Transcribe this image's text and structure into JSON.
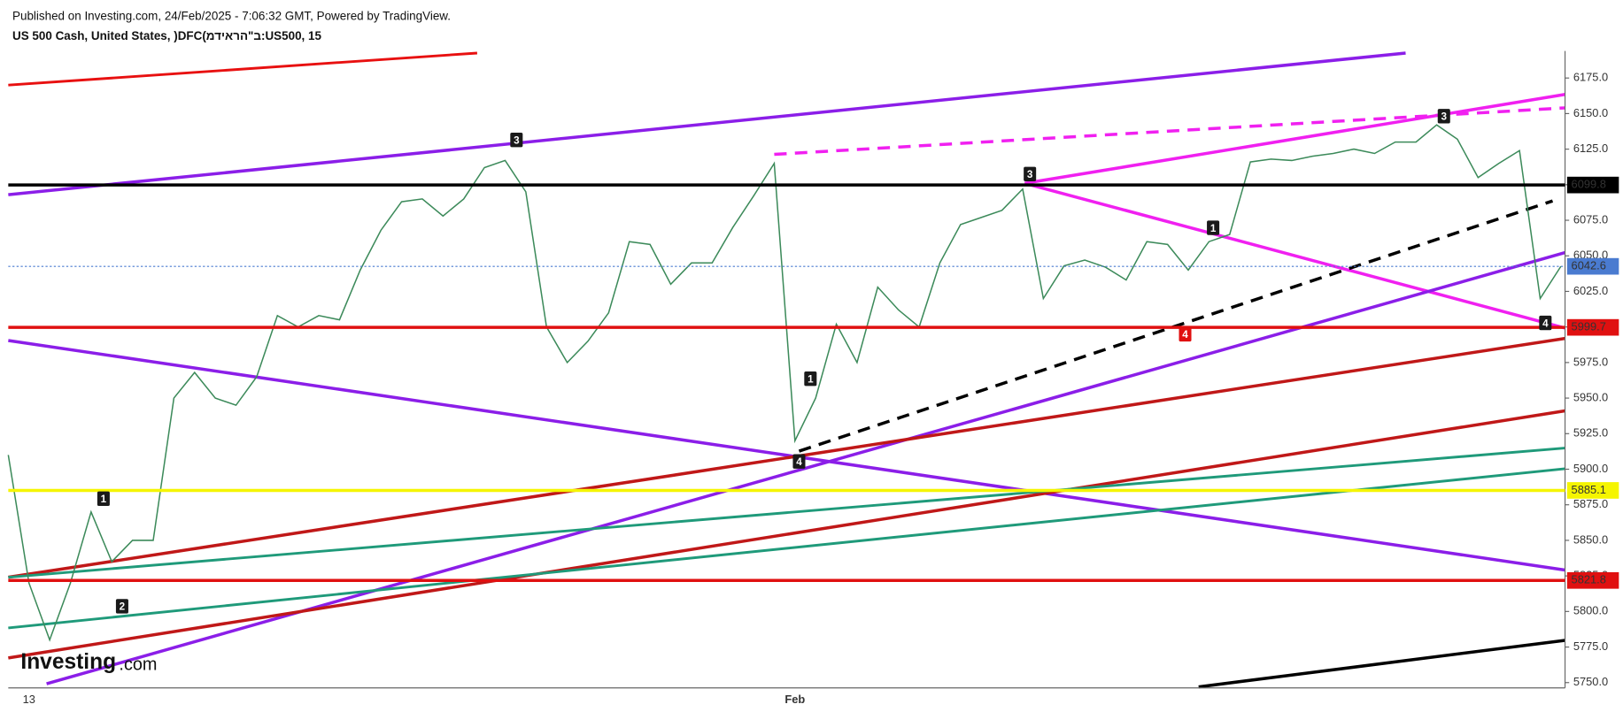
{
  "header": {
    "published": "Published on Investing.com, 24/Feb/2025 - 7:06:32 GMT, Powered by TradingView.",
    "symbol": "US 500 Cash, United States, )DFC(ב\"הראידמ:US500, 15"
  },
  "logo": {
    "name": "Investing",
    "suffix": ".com"
  },
  "chart_data": {
    "type": "line",
    "color": "#3c8a5a",
    "categories": [
      null,
      "13",
      null,
      null,
      null,
      null,
      null,
      null,
      null,
      null,
      null,
      null,
      null,
      null,
      null,
      null,
      null,
      null,
      null,
      null,
      null,
      null,
      null,
      null,
      null,
      null,
      null,
      null,
      null,
      null,
      null,
      null,
      null,
      null,
      null,
      null,
      null,
      null,
      "Feb",
      null,
      null,
      null,
      null,
      null,
      null,
      null,
      null,
      null,
      null,
      null,
      null,
      null,
      null,
      null,
      null,
      null,
      null,
      null,
      null,
      null,
      null,
      null,
      null,
      null,
      null,
      null,
      null,
      null,
      null,
      null,
      null,
      null,
      null,
      null,
      null,
      null
    ],
    "values": [
      5910,
      5820,
      5780,
      5820,
      5870,
      5835,
      5850,
      5850,
      5950,
      5968,
      5950,
      5945,
      5965,
      6008,
      6000,
      6008,
      6005,
      6040,
      6068,
      6088,
      6090,
      6078,
      6090,
      6112,
      6117,
      6095,
      6000,
      5975,
      5990,
      6010,
      6060,
      6058,
      6030,
      6045,
      6045,
      6070,
      6092,
      6115,
      5920,
      5950,
      6002,
      5975,
      6028,
      6012,
      6000,
      6045,
      6072,
      6077,
      6082,
      6097,
      6020,
      6043,
      6047,
      6042,
      6033,
      6060,
      6058,
      6040,
      6060,
      6065,
      6116,
      6118,
      6117,
      6120,
      6122,
      6125,
      6122,
      6130,
      6130,
      6142,
      6132,
      6105,
      6115,
      6124,
      6020,
      6042.6
    ],
    "ylim": [
      5747,
      6194
    ],
    "yticks": [
      {
        "value": 5750,
        "label": "5750.0"
      },
      {
        "value": 5775,
        "label": "5775.0"
      },
      {
        "value": 5800,
        "label": "5800.0"
      },
      {
        "value": 5825,
        "label": "5825.0"
      },
      {
        "value": 5850,
        "label": "5850.0"
      },
      {
        "value": 5875,
        "label": "5875.0"
      },
      {
        "value": 5900,
        "label": "5900.0"
      },
      {
        "value": 5925,
        "label": "5925.0"
      },
      {
        "value": 5950,
        "label": "5950.0"
      },
      {
        "value": 5975,
        "label": "5975.0"
      },
      {
        "value": 6000,
        "label": "6000.0"
      },
      {
        "value": 6025,
        "label": "6025.0"
      },
      {
        "value": 6050,
        "label": "6050.0"
      },
      {
        "value": 6075,
        "label": "6075.0"
      },
      {
        "value": 6100,
        "label": "6100.0"
      },
      {
        "value": 6125,
        "label": "6125.0"
      },
      {
        "value": 6150,
        "label": "6150.0"
      },
      {
        "value": 6175,
        "label": "6175.0"
      }
    ],
    "levels": [
      {
        "value": 6099.8,
        "color": "#000000"
      },
      {
        "value": 6042.6,
        "color": "#4a7bd0"
      },
      {
        "value": 5999.7,
        "color": "#e01010"
      },
      {
        "value": 5885.1,
        "color": "#f5f500"
      },
      {
        "value": 5821.8,
        "color": "#e01010"
      }
    ],
    "wave_labels": [
      "1",
      "2",
      "3",
      "4",
      "1",
      "3",
      "4",
      "1",
      "3",
      "4"
    ],
    "grid": false
  }
}
